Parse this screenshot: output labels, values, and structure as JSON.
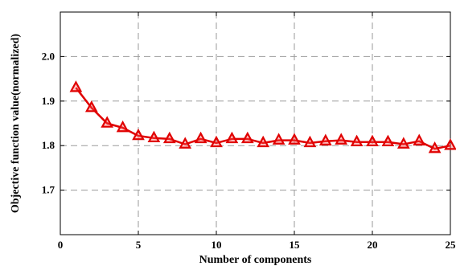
{
  "chart_data": {
    "type": "line",
    "xlabel": "Number of components",
    "ylabel": "Objective function value(normalized)",
    "xlim": [
      0,
      25
    ],
    "ylim": [
      1.6,
      2.1
    ],
    "xticks": [
      0,
      5,
      10,
      15,
      20,
      25
    ],
    "yticks": [
      1.7,
      1.8,
      1.9,
      2.0
    ],
    "grid": true,
    "series": [
      {
        "color": "#e00000",
        "marker": "triangle",
        "x": [
          1,
          2,
          3,
          4,
          5,
          6,
          7,
          8,
          9,
          10,
          11,
          12,
          13,
          14,
          15,
          16,
          17,
          18,
          19,
          20,
          21,
          22,
          23,
          24,
          25
        ],
        "y": [
          1.93,
          1.885,
          1.85,
          1.84,
          1.822,
          1.817,
          1.815,
          1.803,
          1.815,
          1.806,
          1.815,
          1.815,
          1.806,
          1.812,
          1.812,
          1.806,
          1.81,
          1.812,
          1.808,
          1.808,
          1.808,
          1.803,
          1.81,
          1.793,
          1.8
        ]
      }
    ]
  }
}
